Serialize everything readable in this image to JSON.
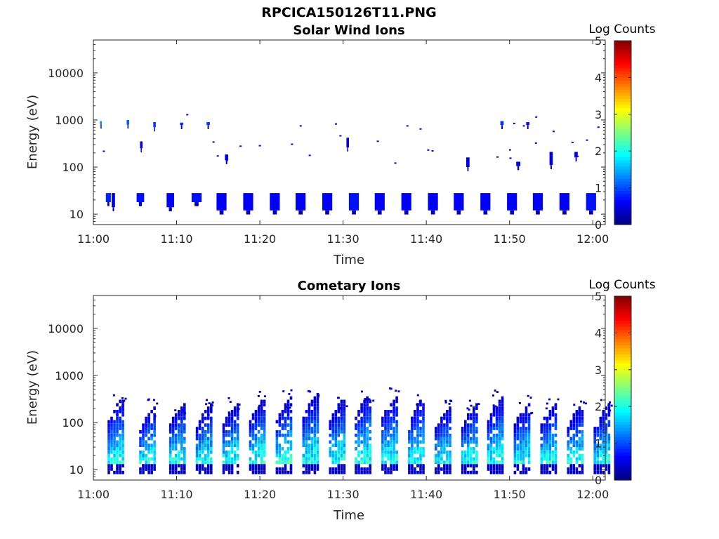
{
  "figure_title": "RPCICA150126T11.PNG",
  "chart_data": [
    {
      "type": "heatmap",
      "title": "Solar Wind Ions",
      "xlabel": "Time",
      "ylabel": "Energy (eV)",
      "x_ticks": [
        "11:00",
        "11:10",
        "11:20",
        "11:30",
        "11:40",
        "11:50",
        "12:00"
      ],
      "y_ticks": [
        "10",
        "100",
        "1000",
        "10000"
      ],
      "y_scale": "log",
      "ylim": [
        6,
        50000
      ],
      "xlim_minutes": [
        0,
        61.5
      ],
      "colorbar": {
        "label": "Log Counts",
        "ticks": [
          "0",
          "1",
          "2",
          "3",
          "4",
          "5"
        ],
        "range": [
          0,
          5
        ],
        "colormap": "jet"
      },
      "blocks": [
        {
          "t": 1.5,
          "w": 0.6,
          "e0": 18,
          "e1": 28,
          "v": 0.8
        },
        {
          "t": 2.2,
          "w": 0.4,
          "e0": 14,
          "e1": 28,
          "v": 0.5
        },
        {
          "t": 5.2,
          "w": 0.9,
          "e0": 18,
          "e1": 28,
          "v": 0.7
        },
        {
          "t": 8.8,
          "w": 0.9,
          "e0": 14,
          "e1": 28,
          "v": 0.6
        },
        {
          "t": 11.8,
          "w": 1.2,
          "e0": 18,
          "e1": 28,
          "v": 0.7
        },
        {
          "t": 14.8,
          "w": 1.2,
          "e0": 12,
          "e1": 28,
          "v": 0.6
        },
        {
          "t": 18.0,
          "w": 1.2,
          "e0": 12,
          "e1": 28,
          "v": 0.6
        },
        {
          "t": 21.2,
          "w": 1.2,
          "e0": 12,
          "e1": 28,
          "v": 0.6
        },
        {
          "t": 24.3,
          "w": 1.2,
          "e0": 12,
          "e1": 28,
          "v": 0.6
        },
        {
          "t": 27.5,
          "w": 1.2,
          "e0": 12,
          "e1": 28,
          "v": 0.6
        },
        {
          "t": 30.7,
          "w": 1.2,
          "e0": 12,
          "e1": 28,
          "v": 0.7
        },
        {
          "t": 33.8,
          "w": 1.2,
          "e0": 12,
          "e1": 28,
          "v": 0.6
        },
        {
          "t": 37.0,
          "w": 1.2,
          "e0": 12,
          "e1": 28,
          "v": 0.6
        },
        {
          "t": 40.2,
          "w": 1.2,
          "e0": 12,
          "e1": 28,
          "v": 0.6
        },
        {
          "t": 43.3,
          "w": 1.2,
          "e0": 12,
          "e1": 28,
          "v": 0.6
        },
        {
          "t": 46.5,
          "w": 1.2,
          "e0": 12,
          "e1": 28,
          "v": 0.6
        },
        {
          "t": 49.7,
          "w": 1.2,
          "e0": 12,
          "e1": 28,
          "v": 0.6
        },
        {
          "t": 52.8,
          "w": 1.2,
          "e0": 12,
          "e1": 28,
          "v": 0.6
        },
        {
          "t": 56.0,
          "w": 1.2,
          "e0": 12,
          "e1": 28,
          "v": 0.6
        },
        {
          "t": 59.2,
          "w": 1.2,
          "e0": 12,
          "e1": 28,
          "v": 0.7
        },
        {
          "t": 0.8,
          "w": 0.2,
          "e0": 800,
          "e1": 950,
          "v": 1.3
        },
        {
          "t": 4.0,
          "w": 0.3,
          "e0": 800,
          "e1": 1000,
          "v": 1.1
        },
        {
          "t": 7.2,
          "w": 0.3,
          "e0": 700,
          "e1": 900,
          "v": 0.9
        },
        {
          "t": 10.4,
          "w": 0.4,
          "e0": 780,
          "e1": 880,
          "v": 0.9
        },
        {
          "t": 13.6,
          "w": 0.4,
          "e0": 780,
          "e1": 900,
          "v": 0.9
        },
        {
          "t": 30.4,
          "w": 0.3,
          "e0": 260,
          "e1": 420,
          "v": 0.6
        },
        {
          "t": 48.9,
          "w": 0.4,
          "e0": 780,
          "e1": 950,
          "v": 0.9
        },
        {
          "t": 52.0,
          "w": 0.4,
          "e0": 780,
          "e1": 900,
          "v": 0.7
        },
        {
          "t": 5.6,
          "w": 0.3,
          "e0": 250,
          "e1": 350,
          "v": 0.6
        },
        {
          "t": 15.8,
          "w": 0.4,
          "e0": 140,
          "e1": 185,
          "v": 0.5
        },
        {
          "t": 44.8,
          "w": 0.4,
          "e0": 100,
          "e1": 160,
          "v": 0.5
        },
        {
          "t": 50.8,
          "w": 0.5,
          "e0": 105,
          "e1": 130,
          "v": 0.5
        },
        {
          "t": 54.8,
          "w": 0.4,
          "e0": 110,
          "e1": 210,
          "v": 0.5
        },
        {
          "t": 57.8,
          "w": 0.4,
          "e0": 160,
          "e1": 210,
          "v": 0.5
        }
      ]
    },
    {
      "type": "heatmap",
      "title": "Cometary Ions",
      "xlabel": "Time",
      "ylabel": "Energy (eV)",
      "x_ticks": [
        "11:00",
        "11:10",
        "11:20",
        "11:30",
        "11:40",
        "11:50",
        "12:00"
      ],
      "y_ticks": [
        "10",
        "100",
        "1000",
        "10000"
      ],
      "y_scale": "log",
      "ylim": [
        6,
        50000
      ],
      "xlim_minutes": [
        0,
        61.5
      ],
      "colorbar": {
        "label": "Log Counts",
        "ticks": [
          "0",
          "1",
          "2",
          "3",
          "4",
          "5"
        ],
        "range": [
          0,
          5
        ],
        "colormap": "jet"
      },
      "bursts": [
        {
          "t": 1.7,
          "top": 300
        },
        {
          "t": 5.5,
          "top": 210
        },
        {
          "t": 9.1,
          "top": 250
        },
        {
          "t": 12.3,
          "top": 220
        },
        {
          "t": 15.5,
          "top": 240
        },
        {
          "t": 18.7,
          "top": 300
        },
        {
          "t": 21.9,
          "top": 320
        },
        {
          "t": 25.1,
          "top": 380
        },
        {
          "t": 28.3,
          "top": 300
        },
        {
          "t": 31.4,
          "top": 360
        },
        {
          "t": 34.6,
          "top": 340
        },
        {
          "t": 37.8,
          "top": 300
        },
        {
          "t": 41.0,
          "top": 200
        },
        {
          "t": 44.2,
          "top": 220
        },
        {
          "t": 47.3,
          "top": 320
        },
        {
          "t": 50.5,
          "top": 240
        },
        {
          "t": 53.7,
          "top": 240
        },
        {
          "t": 56.9,
          "top": 220
        },
        {
          "t": 60.1,
          "top": 230
        }
      ]
    }
  ]
}
